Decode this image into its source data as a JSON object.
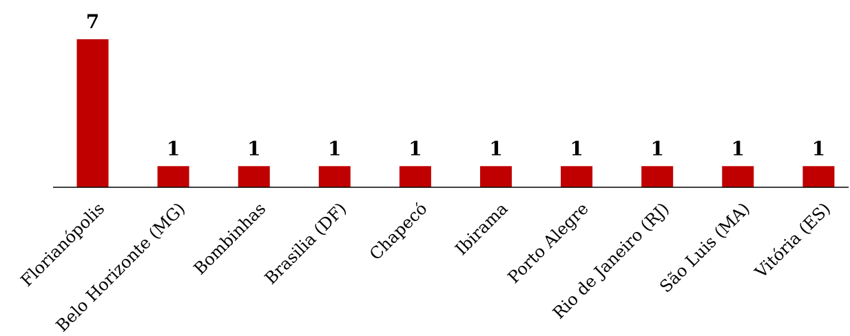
{
  "chart_data": {
    "type": "bar",
    "title": "",
    "xlabel": "",
    "ylabel": "",
    "categories": [
      "Florianópolis",
      "Belo Horizonte (MG)",
      "Bombinhas",
      "Brasilia (DF)",
      "Chapecó",
      "Ibirama",
      "Porto Alegre",
      "Rio de Janeiro (RJ)",
      "São Luis (MA)",
      "Vitória (ES)"
    ],
    "values": [
      7,
      1,
      1,
      1,
      1,
      1,
      1,
      1,
      1,
      1
    ],
    "ylim": [
      0,
      7
    ],
    "grid": false,
    "legend": "none",
    "bar_color": "#c00000",
    "data_labels": true,
    "axis_line_color": "#000000"
  }
}
